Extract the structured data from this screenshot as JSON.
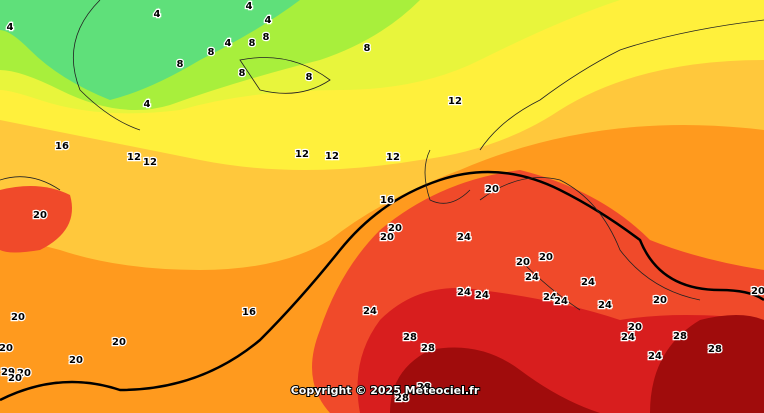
{
  "contour_labels": [
    "4",
    "4",
    "4",
    "4",
    "8",
    "4",
    "8",
    "8",
    "8",
    "8",
    "8",
    "8",
    "4",
    "12",
    "16",
    "12",
    "12",
    "12",
    "12",
    "12",
    "20",
    "16",
    "20",
    "20",
    "24",
    "20",
    "20",
    "20",
    "24",
    "24",
    "24",
    "24",
    "24",
    "24",
    "24",
    "20",
    "20",
    "24",
    "16",
    "20",
    "20",
    "20",
    "20",
    "28",
    "28",
    "20",
    "24",
    "28",
    "28",
    "24",
    "29",
    "20",
    "20",
    "28",
    "28"
  ],
  "copyright": "Copyright © 2025 Meteociel.fr"
}
